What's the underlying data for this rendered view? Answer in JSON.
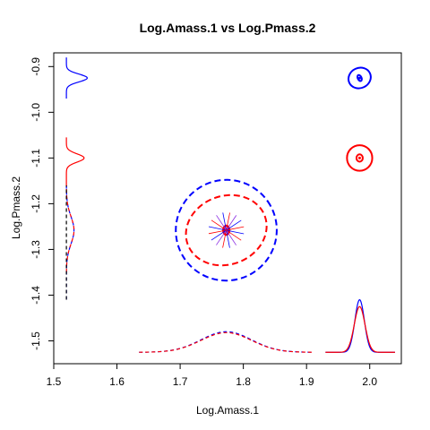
{
  "chart_data": {
    "type": "scatter",
    "title": "Log.Amass.1 vs Log.Pmass.2",
    "xlabel": "Log.Amass.1",
    "ylabel": "Log.Pmass.2",
    "xlim": [
      1.5,
      2.05
    ],
    "ylim": [
      -1.55,
      -0.87
    ],
    "xticks": [
      1.5,
      1.6,
      1.7,
      1.8,
      1.9,
      2.0
    ],
    "xtick_labels": [
      "1.5",
      "1.6",
      "1.7",
      "1.8",
      "1.9",
      "2.0"
    ],
    "yticks": [
      -0.9,
      -1.0,
      -1.1,
      -1.2,
      -1.3,
      -1.4,
      -1.5
    ],
    "ytick_labels": [
      "-0.9",
      "-1.0",
      "-1.1",
      "-1.2",
      "-1.3",
      "-1.4",
      "-1.5"
    ],
    "colors": {
      "blue": "#0000ff",
      "red": "#ff0000",
      "purple": "#8a2be2"
    },
    "series": [
      {
        "color": "blue",
        "centers": [
          {
            "x": 1.984,
            "y": -0.925
          },
          {
            "x": 1.773,
            "y": -1.258
          }
        ],
        "ellipses": [
          {
            "cx": 1.984,
            "cy": -0.925,
            "rx": 0.018,
            "ry": 0.022,
            "rot": -25,
            "dash": false
          },
          {
            "cx": 1.984,
            "cy": -0.925,
            "rx": 0.003,
            "ry": 0.007,
            "rot": -25,
            "dash": false
          },
          {
            "cx": 1.773,
            "cy": -1.258,
            "rx": 0.08,
            "ry": 0.11,
            "rot": -35,
            "dash": true
          },
          {
            "cx": 1.773,
            "cy": -1.258,
            "rx": 0.004,
            "ry": 0.01,
            "rot": 0,
            "dash": false
          }
        ]
      },
      {
        "color": "red",
        "centers": [
          {
            "x": 1.984,
            "y": -1.1
          },
          {
            "x": 1.773,
            "y": -1.258
          }
        ],
        "ellipses": [
          {
            "cx": 1.984,
            "cy": -1.1,
            "rx": 0.02,
            "ry": 0.028,
            "rot": 0,
            "dash": false
          },
          {
            "cx": 1.984,
            "cy": -1.1,
            "rx": 0.005,
            "ry": 0.008,
            "rot": 0,
            "dash": false
          },
          {
            "cx": 1.773,
            "cy": -1.258,
            "rx": 0.065,
            "ry": 0.075,
            "rot": -20,
            "dash": true
          },
          {
            "cx": 1.773,
            "cy": -1.258,
            "rx": 0.005,
            "ry": 0.01,
            "rot": 0,
            "dash": false
          }
        ]
      }
    ],
    "marginal_x": [
      {
        "color": "blue",
        "mean": 1.984,
        "sd": 0.0075,
        "peak": 0.115,
        "base": -1.525,
        "x_range": [
          1.93,
          2.04
        ],
        "dash": false
      },
      {
        "color": "red",
        "mean": 1.984,
        "sd": 0.0085,
        "peak": 0.1,
        "base": -1.525,
        "x_range": [
          1.93,
          2.04
        ],
        "dash": false
      },
      {
        "color": "blue",
        "mean": 1.773,
        "sd": 0.04,
        "peak": 0.045,
        "base": -1.525,
        "x_range": [
          1.635,
          1.91
        ],
        "dash": true
      },
      {
        "color": "red",
        "mean": 1.773,
        "sd": 0.04,
        "peak": 0.043,
        "base": -1.525,
        "x_range": [
          1.635,
          1.91
        ],
        "dash": true
      }
    ],
    "marginal_y": [
      {
        "color": "blue",
        "mean": -0.925,
        "sd": 0.0085,
        "peak": 0.033,
        "base": 1.52,
        "y_range": [
          -0.97,
          -0.88
        ],
        "dash": false
      },
      {
        "color": "red",
        "mean": -1.1,
        "sd": 0.009,
        "peak": 0.028,
        "base": 1.52,
        "y_range": [
          -1.16,
          -1.055
        ],
        "dash": false
      },
      {
        "color": "blue",
        "mean": -1.258,
        "sd": 0.03,
        "peak": 0.012,
        "base": 1.52,
        "y_range": [
          -1.41,
          -1.16
        ],
        "dash": true
      },
      {
        "color": "red",
        "mean": -1.258,
        "sd": 0.03,
        "peak": 0.012,
        "base": 1.52,
        "y_range": [
          -1.35,
          -1.16
        ],
        "dash": true
      },
      {
        "color": "black",
        "mean": -1.258,
        "sd": 0.03,
        "peak": 0.0,
        "base": 1.52,
        "y_range": [
          -1.41,
          -1.16
        ],
        "dash": true
      }
    ],
    "star_center": {
      "x": 1.773,
      "y": -1.258
    },
    "grid": false,
    "legend": "none"
  }
}
